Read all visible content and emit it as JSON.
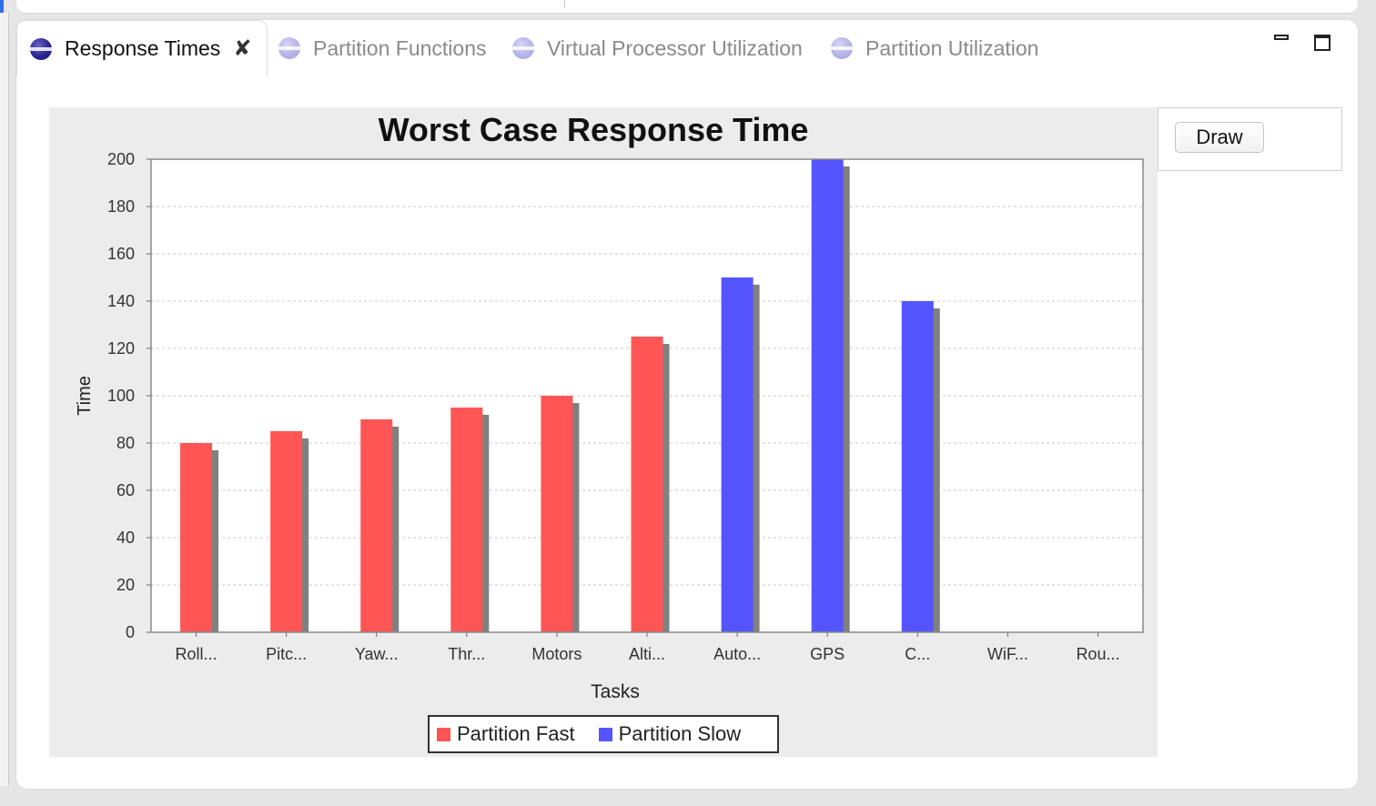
{
  "tabs": [
    {
      "label": "Response Times",
      "active": true,
      "icon": "eclipse-view-icon"
    },
    {
      "label": "Partition Functions",
      "active": false,
      "icon": "eclipse-view-icon"
    },
    {
      "label": "Virtual Processor Utilization",
      "active": false,
      "icon": "eclipse-view-icon"
    },
    {
      "label": "Partition Utilization",
      "active": false,
      "icon": "eclipse-view-icon"
    }
  ],
  "tab_close_glyph": "✘",
  "side_panel": {
    "draw_label": "Draw"
  },
  "colors": {
    "fast": "#ff5555",
    "slow": "#5555ff",
    "shadow": "#808080",
    "grid": "#c8c8c8",
    "plot_bg": "#ffffff"
  },
  "chart_data": {
    "type": "bar",
    "title": "Worst Case Response Time",
    "xlabel": "Tasks",
    "ylabel": "Time",
    "ylim": [
      0,
      200
    ],
    "yticks": [
      0,
      20,
      40,
      60,
      80,
      100,
      120,
      140,
      160,
      180,
      200
    ],
    "grid": true,
    "legend_position": "bottom",
    "categories": [
      "Roll...",
      "Pitc...",
      "Yaw...",
      "Thr...",
      "Motors",
      "Alti...",
      "Auto...",
      "GPS",
      "C...",
      "WiF...",
      "Rou..."
    ],
    "series": [
      {
        "name": "Partition Fast",
        "color": "#ff5555",
        "values": [
          80,
          85,
          90,
          95,
          100,
          125,
          0,
          0,
          0,
          0,
          0
        ]
      },
      {
        "name": "Partition Slow",
        "color": "#5555ff",
        "values": [
          0,
          0,
          0,
          0,
          0,
          0,
          150,
          200,
          140,
          0,
          0
        ]
      }
    ]
  }
}
